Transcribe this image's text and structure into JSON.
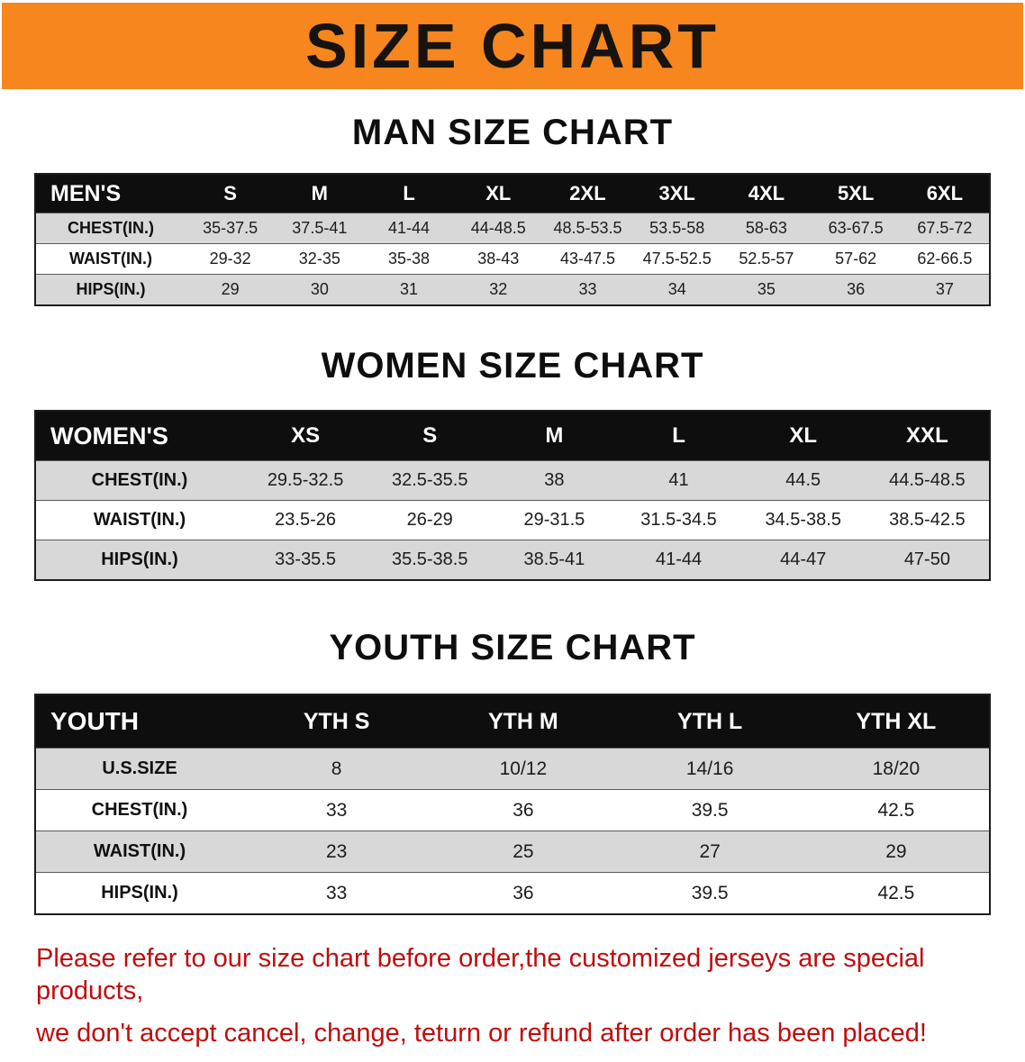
{
  "banner": {
    "title": "SIZE CHART"
  },
  "sections": [
    {
      "heading": "MAN SIZE CHART",
      "table": {
        "header": [
          "MEN'S",
          "S",
          "M",
          "L",
          "XL",
          "2XL",
          "3XL",
          "4XL",
          "5XL",
          "6XL"
        ],
        "rows": [
          [
            "CHEST(IN.)",
            "35-37.5",
            "37.5-41",
            "41-44",
            "44-48.5",
            "48.5-53.5",
            "53.5-58",
            "58-63",
            "63-67.5",
            "67.5-72"
          ],
          [
            "WAIST(IN.)",
            "29-32",
            "32-35",
            "35-38",
            "38-43",
            "43-47.5",
            "47.5-52.5",
            "52.5-57",
            "57-62",
            "62-66.5"
          ],
          [
            "HIPS(IN.)",
            "29",
            "30",
            "31",
            "32",
            "33",
            "34",
            "35",
            "36",
            "37"
          ]
        ]
      }
    },
    {
      "heading": "WOMEN SIZE CHART",
      "table": {
        "header": [
          "WOMEN'S",
          "XS",
          "S",
          "M",
          "L",
          "XL",
          "XXL"
        ],
        "rows": [
          [
            "CHEST(IN.)",
            "29.5-32.5",
            "32.5-35.5",
            "38",
            "41",
            "44.5",
            "44.5-48.5"
          ],
          [
            "WAIST(IN.)",
            "23.5-26",
            "26-29",
            "29-31.5",
            "31.5-34.5",
            "34.5-38.5",
            "38.5-42.5"
          ],
          [
            "HIPS(IN.)",
            "33-35.5",
            "35.5-38.5",
            "38.5-41",
            "41-44",
            "44-47",
            "47-50"
          ]
        ]
      }
    },
    {
      "heading": "YOUTH SIZE CHART",
      "table": {
        "header": [
          "YOUTH",
          "YTH S",
          "YTH M",
          "YTH L",
          "YTH XL"
        ],
        "rows": [
          [
            "U.S.SIZE",
            "8",
            "10/12",
            "14/16",
            "18/20"
          ],
          [
            "CHEST(IN.)",
            "33",
            "36",
            "39.5",
            "42.5"
          ],
          [
            "WAIST(IN.)",
            "23",
            "25",
            "27",
            "29"
          ],
          [
            "HIPS(IN.)",
            "33",
            "36",
            "39.5",
            "42.5"
          ]
        ]
      }
    }
  ],
  "note": {
    "line1": "Please refer to our size chart before order,the customized jerseys are special products,",
    "line2": "we don't accept cancel, change, teturn or refund after order has been placed!"
  },
  "colors": {
    "banner_bg": "#f6861d",
    "table_header_bg": "#0e0e0e",
    "table_header_text": "#ffffff",
    "row_alt_bg": "#d8d8d8",
    "note_text": "#bf0d0d"
  }
}
